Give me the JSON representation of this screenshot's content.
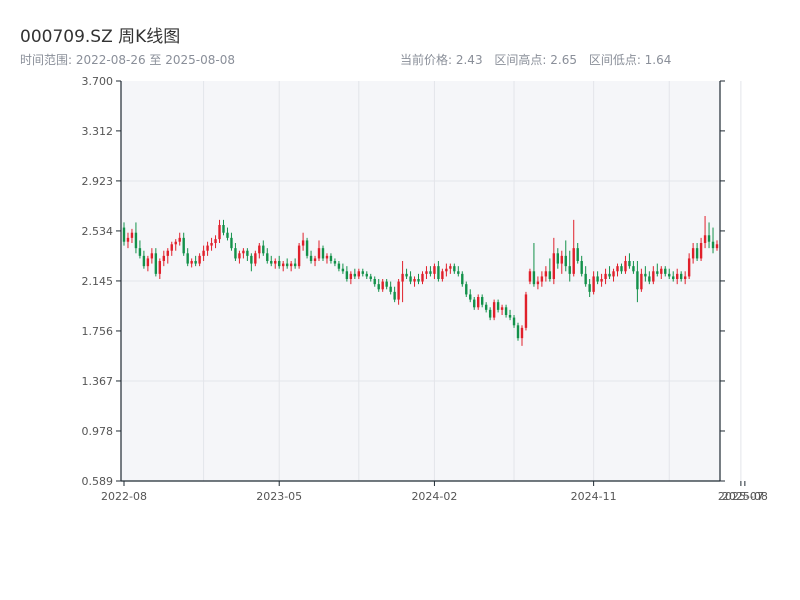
{
  "header": {
    "title": "000709.SZ 周K线图",
    "range_text": "时间范围: 2022-08-26 至 2025-08-08",
    "current_price_text": "当前价格: 2.43",
    "range_high_text": "区间高点: 2.65",
    "range_low_text": "区间低点: 1.64"
  },
  "colors": {
    "up": "#e0202b",
    "down": "#13914a",
    "plot_bg": "#f5f6f9",
    "grid": "#e3e5ea",
    "axis": "#1f2a33"
  },
  "chart_data": {
    "type": "candlestick",
    "title": "000709.SZ 周K线图",
    "ylim": [
      0.589,
      3.7
    ],
    "yticks": [
      "0.589",
      "0.978",
      "1.367",
      "1.756",
      "2.145",
      "2.534",
      "2.923",
      "3.312",
      "3.700"
    ],
    "xticks": [
      {
        "label": "2022-08",
        "index": 0
      },
      {
        "label": "2023-05",
        "index": 39
      },
      {
        "label": "2024-02",
        "index": 78
      },
      {
        "label": "2024-11",
        "index": 118
      },
      {
        "label": "2025-07",
        "index": 155
      },
      {
        "label": "2025-08",
        "index": 156
      }
    ],
    "grid": true,
    "ohlc": [
      [
        2.56,
        2.6,
        2.42,
        2.45
      ],
      [
        2.45,
        2.52,
        2.4,
        2.48
      ],
      [
        2.48,
        2.55,
        2.44,
        2.52
      ],
      [
        2.52,
        2.6,
        2.36,
        2.4
      ],
      [
        2.4,
        2.46,
        2.32,
        2.34
      ],
      [
        2.34,
        2.38,
        2.24,
        2.26
      ],
      [
        2.26,
        2.34,
        2.22,
        2.32
      ],
      [
        2.32,
        2.4,
        2.28,
        2.36
      ],
      [
        2.36,
        2.4,
        2.18,
        2.2
      ],
      [
        2.2,
        2.32,
        2.16,
        2.3
      ],
      [
        2.3,
        2.38,
        2.26,
        2.34
      ],
      [
        2.34,
        2.4,
        2.28,
        2.38
      ],
      [
        2.38,
        2.45,
        2.34,
        2.43
      ],
      [
        2.43,
        2.47,
        2.38,
        2.45
      ],
      [
        2.45,
        2.52,
        2.42,
        2.48
      ],
      [
        2.48,
        2.52,
        2.34,
        2.36
      ],
      [
        2.36,
        2.4,
        2.26,
        2.28
      ],
      [
        2.28,
        2.32,
        2.25,
        2.3
      ],
      [
        2.3,
        2.34,
        2.26,
        2.28
      ],
      [
        2.28,
        2.36,
        2.26,
        2.34
      ],
      [
        2.34,
        2.42,
        2.3,
        2.38
      ],
      [
        2.38,
        2.45,
        2.34,
        2.42
      ],
      [
        2.42,
        2.48,
        2.38,
        2.44
      ],
      [
        2.44,
        2.5,
        2.4,
        2.47
      ],
      [
        2.47,
        2.62,
        2.44,
        2.58
      ],
      [
        2.58,
        2.62,
        2.5,
        2.52
      ],
      [
        2.52,
        2.56,
        2.46,
        2.48
      ],
      [
        2.48,
        2.52,
        2.38,
        2.4
      ],
      [
        2.4,
        2.44,
        2.3,
        2.32
      ],
      [
        2.32,
        2.38,
        2.28,
        2.36
      ],
      [
        2.36,
        2.4,
        2.32,
        2.38
      ],
      [
        2.38,
        2.4,
        2.3,
        2.34
      ],
      [
        2.34,
        2.36,
        2.22,
        2.28
      ],
      [
        2.28,
        2.38,
        2.26,
        2.36
      ],
      [
        2.36,
        2.44,
        2.32,
        2.42
      ],
      [
        2.42,
        2.46,
        2.34,
        2.36
      ],
      [
        2.36,
        2.4,
        2.28,
        2.3
      ],
      [
        2.3,
        2.34,
        2.26,
        2.28
      ],
      [
        2.28,
        2.32,
        2.24,
        2.3
      ],
      [
        2.3,
        2.34,
        2.24,
        2.26
      ],
      [
        2.26,
        2.3,
        2.22,
        2.28
      ],
      [
        2.28,
        2.32,
        2.24,
        2.26
      ],
      [
        2.26,
        2.3,
        2.22,
        2.28
      ],
      [
        2.28,
        2.32,
        2.24,
        2.26
      ],
      [
        2.26,
        2.44,
        2.24,
        2.42
      ],
      [
        2.42,
        2.52,
        2.38,
        2.46
      ],
      [
        2.46,
        2.48,
        2.32,
        2.34
      ],
      [
        2.34,
        2.38,
        2.28,
        2.3
      ],
      [
        2.3,
        2.34,
        2.26,
        2.32
      ],
      [
        2.32,
        2.46,
        2.3,
        2.4
      ],
      [
        2.4,
        2.42,
        2.3,
        2.32
      ],
      [
        2.32,
        2.36,
        2.28,
        2.34
      ],
      [
        2.34,
        2.36,
        2.28,
        2.3
      ],
      [
        2.3,
        2.32,
        2.26,
        2.28
      ],
      [
        2.28,
        2.3,
        2.22,
        2.24
      ],
      [
        2.24,
        2.28,
        2.2,
        2.22
      ],
      [
        2.22,
        2.26,
        2.14,
        2.16
      ],
      [
        2.16,
        2.22,
        2.12,
        2.2
      ],
      [
        2.2,
        2.24,
        2.16,
        2.18
      ],
      [
        2.18,
        2.24,
        2.16,
        2.22
      ],
      [
        2.22,
        2.24,
        2.18,
        2.2
      ],
      [
        2.2,
        2.22,
        2.16,
        2.18
      ],
      [
        2.18,
        2.2,
        2.14,
        2.16
      ],
      [
        2.16,
        2.18,
        2.1,
        2.12
      ],
      [
        2.12,
        2.16,
        2.06,
        2.08
      ],
      [
        2.08,
        2.16,
        2.06,
        2.14
      ],
      [
        2.14,
        2.16,
        2.08,
        2.1
      ],
      [
        2.1,
        2.14,
        2.04,
        2.06
      ],
      [
        2.06,
        2.1,
        1.98,
        2.0
      ],
      [
        2.0,
        2.16,
        1.96,
        2.14
      ],
      [
        2.14,
        2.3,
        1.98,
        2.2
      ],
      [
        2.2,
        2.24,
        2.16,
        2.18
      ],
      [
        2.18,
        2.22,
        2.12,
        2.14
      ],
      [
        2.14,
        2.18,
        2.1,
        2.16
      ],
      [
        2.16,
        2.2,
        2.12,
        2.14
      ],
      [
        2.14,
        2.22,
        2.12,
        2.2
      ],
      [
        2.2,
        2.26,
        2.16,
        2.22
      ],
      [
        2.22,
        2.26,
        2.18,
        2.2
      ],
      [
        2.2,
        2.28,
        2.16,
        2.26
      ],
      [
        2.26,
        2.3,
        2.14,
        2.16
      ],
      [
        2.16,
        2.24,
        2.14,
        2.22
      ],
      [
        2.22,
        2.28,
        2.18,
        2.24
      ],
      [
        2.24,
        2.28,
        2.2,
        2.26
      ],
      [
        2.26,
        2.28,
        2.2,
        2.22
      ],
      [
        2.22,
        2.26,
        2.18,
        2.2
      ],
      [
        2.2,
        2.22,
        2.1,
        2.12
      ],
      [
        2.12,
        2.14,
        2.02,
        2.04
      ],
      [
        2.04,
        2.08,
        1.98,
        2.0
      ],
      [
        2.0,
        2.02,
        1.92,
        1.94
      ],
      [
        1.94,
        2.04,
        1.92,
        2.02
      ],
      [
        2.02,
        2.04,
        1.94,
        1.96
      ],
      [
        1.96,
        1.98,
        1.9,
        1.92
      ],
      [
        1.92,
        1.94,
        1.84,
        1.86
      ],
      [
        1.86,
        2.0,
        1.84,
        1.98
      ],
      [
        1.98,
        2.0,
        1.9,
        1.92
      ],
      [
        1.92,
        1.96,
        1.88,
        1.94
      ],
      [
        1.94,
        1.96,
        1.86,
        1.88
      ],
      [
        1.88,
        1.92,
        1.84,
        1.86
      ],
      [
        1.86,
        1.88,
        1.78,
        1.8
      ],
      [
        1.8,
        1.82,
        1.68,
        1.7
      ],
      [
        1.7,
        1.8,
        1.64,
        1.78
      ],
      [
        1.78,
        2.06,
        1.76,
        2.04
      ],
      [
        2.14,
        2.24,
        2.12,
        2.22
      ],
      [
        2.22,
        2.44,
        2.1,
        2.12
      ],
      [
        2.12,
        2.18,
        2.08,
        2.14
      ],
      [
        2.14,
        2.22,
        2.1,
        2.18
      ],
      [
        2.18,
        2.26,
        2.14,
        2.22
      ],
      [
        2.22,
        2.32,
        2.14,
        2.16
      ],
      [
        2.16,
        2.48,
        2.12,
        2.36
      ],
      [
        2.36,
        2.4,
        2.24,
        2.28
      ],
      [
        2.28,
        2.38,
        2.2,
        2.34
      ],
      [
        2.34,
        2.46,
        2.22,
        2.26
      ],
      [
        2.26,
        2.38,
        2.14,
        2.2
      ],
      [
        2.2,
        2.62,
        2.18,
        2.4
      ],
      [
        2.4,
        2.44,
        2.28,
        2.3
      ],
      [
        2.3,
        2.34,
        2.18,
        2.2
      ],
      [
        2.2,
        2.26,
        2.1,
        2.12
      ],
      [
        2.12,
        2.16,
        2.02,
        2.06
      ],
      [
        2.06,
        2.22,
        2.04,
        2.18
      ],
      [
        2.18,
        2.22,
        2.12,
        2.14
      ],
      [
        2.14,
        2.2,
        2.1,
        2.16
      ],
      [
        2.16,
        2.24,
        2.12,
        2.2
      ],
      [
        2.2,
        2.26,
        2.16,
        2.18
      ],
      [
        2.18,
        2.24,
        2.14,
        2.22
      ],
      [
        2.22,
        2.28,
        2.18,
        2.26
      ],
      [
        2.26,
        2.28,
        2.2,
        2.22
      ],
      [
        2.22,
        2.34,
        2.2,
        2.3
      ],
      [
        2.3,
        2.36,
        2.24,
        2.26
      ],
      [
        2.26,
        2.3,
        2.2,
        2.22
      ],
      [
        2.22,
        2.3,
        1.98,
        2.08
      ],
      [
        2.08,
        2.24,
        2.06,
        2.2
      ],
      [
        2.2,
        2.26,
        2.14,
        2.18
      ],
      [
        2.18,
        2.22,
        2.12,
        2.14
      ],
      [
        2.14,
        2.26,
        2.12,
        2.22
      ],
      [
        2.22,
        2.28,
        2.18,
        2.2
      ],
      [
        2.2,
        2.26,
        2.16,
        2.24
      ],
      [
        2.24,
        2.26,
        2.18,
        2.2
      ],
      [
        2.2,
        2.24,
        2.16,
        2.18
      ],
      [
        2.18,
        2.22,
        2.14,
        2.16
      ],
      [
        2.16,
        2.24,
        2.12,
        2.2
      ],
      [
        2.2,
        2.22,
        2.14,
        2.16
      ],
      [
        2.16,
        2.22,
        2.12,
        2.18
      ],
      [
        2.18,
        2.36,
        2.16,
        2.32
      ],
      [
        2.32,
        2.44,
        2.28,
        2.4
      ],
      [
        2.4,
        2.44,
        2.3,
        2.32
      ],
      [
        2.32,
        2.48,
        2.3,
        2.44
      ],
      [
        2.44,
        2.65,
        2.4,
        2.5
      ],
      [
        2.5,
        2.6,
        2.4,
        2.45
      ],
      [
        2.45,
        2.56,
        2.36,
        2.4
      ],
      [
        2.4,
        2.46,
        2.38,
        2.43
      ]
    ]
  }
}
